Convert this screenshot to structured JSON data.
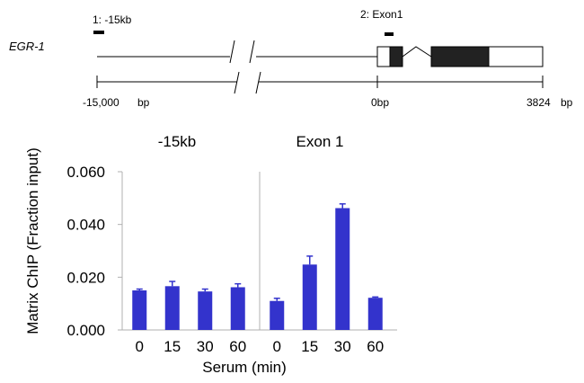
{
  "gene_map": {
    "gene_label": "EGR-1",
    "regions": [
      {
        "label": "1: -15kb"
      },
      {
        "label": "2: Exon1"
      }
    ],
    "scale_labels": {
      "start": "-15,000",
      "start_unit": "bp",
      "zero": "0bp",
      "end": "3824",
      "end_unit": "bp"
    }
  },
  "chart_data": {
    "type": "bar",
    "ylabel": "Matrix ChIP (Fraction input)",
    "xlabel": "Serum (min)",
    "ylim": [
      0,
      0.06
    ],
    "yticks": [
      "0.000",
      "0.020",
      "0.040",
      "0.060"
    ],
    "ytick_values": [
      0,
      0.02,
      0.04,
      0.06
    ],
    "bar_color": "#3333cc",
    "panels": [
      {
        "title": "-15kb",
        "categories": [
          "0",
          "15",
          "30",
          "60"
        ],
        "values": [
          0.015,
          0.0166,
          0.0146,
          0.0162
        ],
        "errors": [
          0.0005,
          0.0018,
          0.0009,
          0.0013
        ]
      },
      {
        "title": "Exon 1",
        "categories": [
          "0",
          "15",
          "30",
          "60"
        ],
        "values": [
          0.011,
          0.0248,
          0.0462,
          0.0122
        ],
        "errors": [
          0.001,
          0.0032,
          0.0016,
          0.0003
        ]
      }
    ]
  }
}
